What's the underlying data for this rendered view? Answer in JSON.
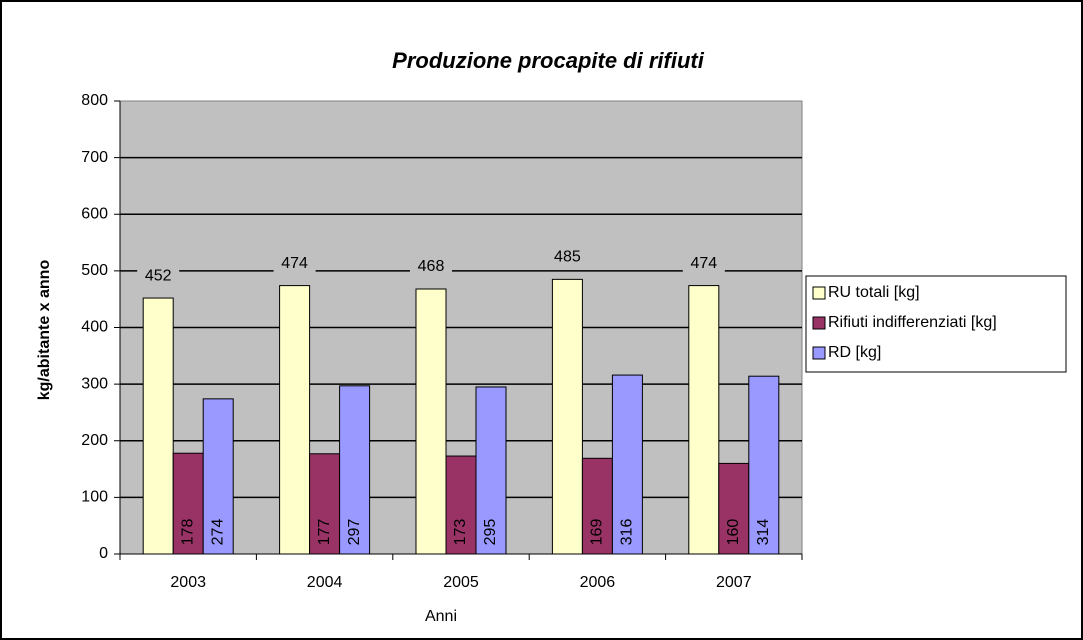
{
  "chart_data": {
    "type": "bar",
    "title": "Produzione procapite di rifiuti",
    "xlabel": "Anni",
    "ylabel": "kg/abitante x anno",
    "categories": [
      "2003",
      "2004",
      "2005",
      "2006",
      "2007"
    ],
    "series": [
      {
        "name": "RU totali [kg]",
        "color": "#ffffcc",
        "values": [
          452,
          474,
          468,
          485,
          474
        ]
      },
      {
        "name": "Rifiuti indifferenziati [kg]",
        "color": "#993366",
        "values": [
          178,
          177,
          173,
          169,
          160
        ]
      },
      {
        "name": "RD [kg]",
        "color": "#9999ff",
        "values": [
          274,
          297,
          295,
          316,
          314
        ]
      }
    ],
    "ylim": [
      0,
      800
    ],
    "yticks": [
      0,
      100,
      200,
      300,
      400,
      500,
      600,
      700,
      800
    ],
    "grid": true,
    "legend": "right",
    "plot_background": "#c0c0c0"
  }
}
